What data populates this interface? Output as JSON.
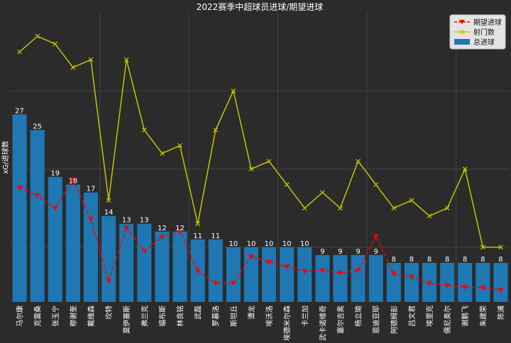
{
  "chart_data": {
    "type": "bar",
    "title": "2022赛季中超球员进球/期望进球",
    "xlabel": "",
    "ylabel": "xG/进球数",
    "categories": [
      "马尔康",
      "克雷桑",
      "张玉宁",
      "穆谢奎",
      "戴维森",
      "坎特",
      "莫伊塞斯",
      "弗兰克",
      "福布斯",
      "林良铭",
      "武磊",
      "罗慕洛",
      "斯坦丘",
      "谭龙",
      "埃沃洛",
      "埃德米尔森",
      "卡兰加",
      "武卡诺维奇",
      "塞尔吉奥",
      "杨立瑜",
      "恩迪亚耶",
      "阿德姆彭",
      "吕文君",
      "埃里克",
      "儒尼奥尔",
      "谢鹏飞",
      "朱建荣",
      "陈浦"
    ],
    "series": [
      {
        "name": "总进球",
        "type": "bar",
        "color": "#1f77b4",
        "values": [
          27,
          25,
          19,
          18,
          17,
          14,
          13,
          13,
          12,
          12,
          11,
          11,
          10,
          10,
          10,
          10,
          10,
          9,
          9,
          9,
          9,
          8,
          8,
          8,
          8,
          8,
          8,
          8
        ]
      },
      {
        "name": "射门数",
        "type": "line",
        "marker": "x",
        "color": "#c4c400",
        "values": [
          35,
          37,
          36,
          33,
          34,
          16,
          34,
          25,
          22,
          23,
          13,
          25,
          30,
          20,
          21,
          18,
          15,
          17,
          15,
          21,
          18,
          15,
          16,
          14,
          15,
          20,
          10,
          10
        ]
      },
      {
        "name": "期望进球",
        "type": "line",
        "line_style": "dashed",
        "marker": "triangle-down",
        "color": "#ff0000",
        "values": [
          17.6,
          16.6,
          15.0,
          18.6,
          13.6,
          5.7,
          12.5,
          9.5,
          11.3,
          12.0,
          7.0,
          5.4,
          5.4,
          8.8,
          8.1,
          7.5,
          6.9,
          7.0,
          6.7,
          7.0,
          11.4,
          6.6,
          6.2,
          5.4,
          5.1,
          4.9,
          4.8,
          4.5
        ]
      }
    ],
    "ylim": [
      3,
      40
    ],
    "grid": true,
    "bar_value_labels": true,
    "legend": {
      "position": "top-right"
    }
  },
  "colors": {
    "background": "#2b2b2b",
    "grid": "#484848",
    "text": "#ffffff",
    "legend_background": "#e4e4e4"
  }
}
